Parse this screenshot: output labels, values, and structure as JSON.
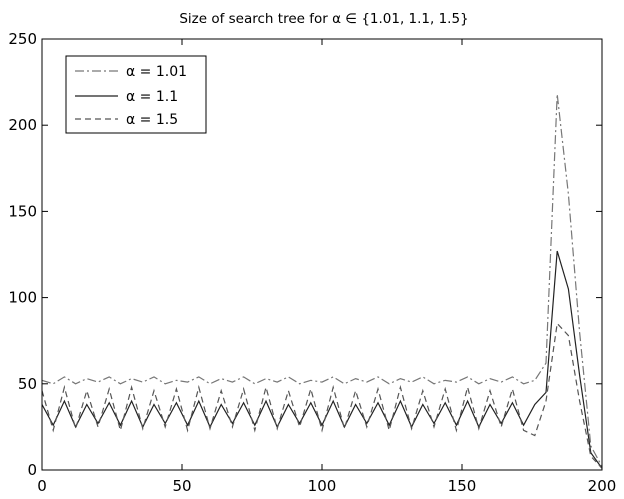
{
  "chart_data": {
    "type": "line",
    "title": "Size of search tree for α ∈ {1.01, 1.1, 1.5}",
    "xlabel": "",
    "ylabel": "",
    "xlim": [
      0,
      200
    ],
    "ylim": [
      0,
      250
    ],
    "xticks": [
      0,
      50,
      100,
      150,
      200
    ],
    "yticks": [
      0,
      50,
      100,
      150,
      200,
      250
    ],
    "grid": false,
    "legend_position": "top-left",
    "x": [
      0,
      4,
      8,
      12,
      16,
      20,
      24,
      28,
      32,
      36,
      40,
      44,
      48,
      52,
      56,
      60,
      64,
      68,
      72,
      76,
      80,
      84,
      88,
      92,
      96,
      100,
      104,
      108,
      112,
      116,
      120,
      124,
      128,
      132,
      136,
      140,
      144,
      148,
      152,
      156,
      160,
      164,
      168,
      172,
      176,
      180,
      184,
      188,
      192,
      196,
      200
    ],
    "series": [
      {
        "name": "α = 1.01",
        "style": "dashdot",
        "color": "#777777",
        "values": [
          52,
          50,
          54,
          50,
          53,
          51,
          54,
          50,
          53,
          51,
          54,
          50,
          52,
          51,
          54,
          50,
          53,
          51,
          54,
          50,
          53,
          51,
          54,
          50,
          52,
          51,
          54,
          50,
          53,
          51,
          54,
          50,
          53,
          51,
          54,
          50,
          52,
          51,
          54,
          50,
          53,
          51,
          54,
          50,
          52,
          62,
          218,
          160,
          80,
          14,
          2
        ]
      },
      {
        "name": "α = 1.1",
        "style": "solid",
        "color": "#222222",
        "values": [
          38,
          26,
          40,
          25,
          38,
          27,
          39,
          26,
          40,
          25,
          38,
          27,
          39,
          26,
          40,
          25,
          38,
          27,
          39,
          26,
          40,
          25,
          38,
          27,
          39,
          26,
          40,
          25,
          38,
          27,
          39,
          26,
          40,
          25,
          38,
          27,
          39,
          26,
          40,
          25,
          38,
          27,
          39,
          26,
          38,
          45,
          127,
          105,
          55,
          10,
          1
        ]
      },
      {
        "name": "α = 1.5",
        "style": "dashed",
        "color": "#555555",
        "values": [
          46,
          23,
          48,
          24,
          46,
          25,
          47,
          23,
          48,
          24,
          46,
          25,
          47,
          23,
          48,
          24,
          46,
          25,
          47,
          23,
          48,
          24,
          46,
          25,
          47,
          23,
          48,
          24,
          46,
          25,
          47,
          23,
          48,
          24,
          46,
          25,
          47,
          23,
          48,
          24,
          46,
          25,
          47,
          23,
          20,
          40,
          85,
          78,
          40,
          8,
          1
        ]
      }
    ]
  }
}
